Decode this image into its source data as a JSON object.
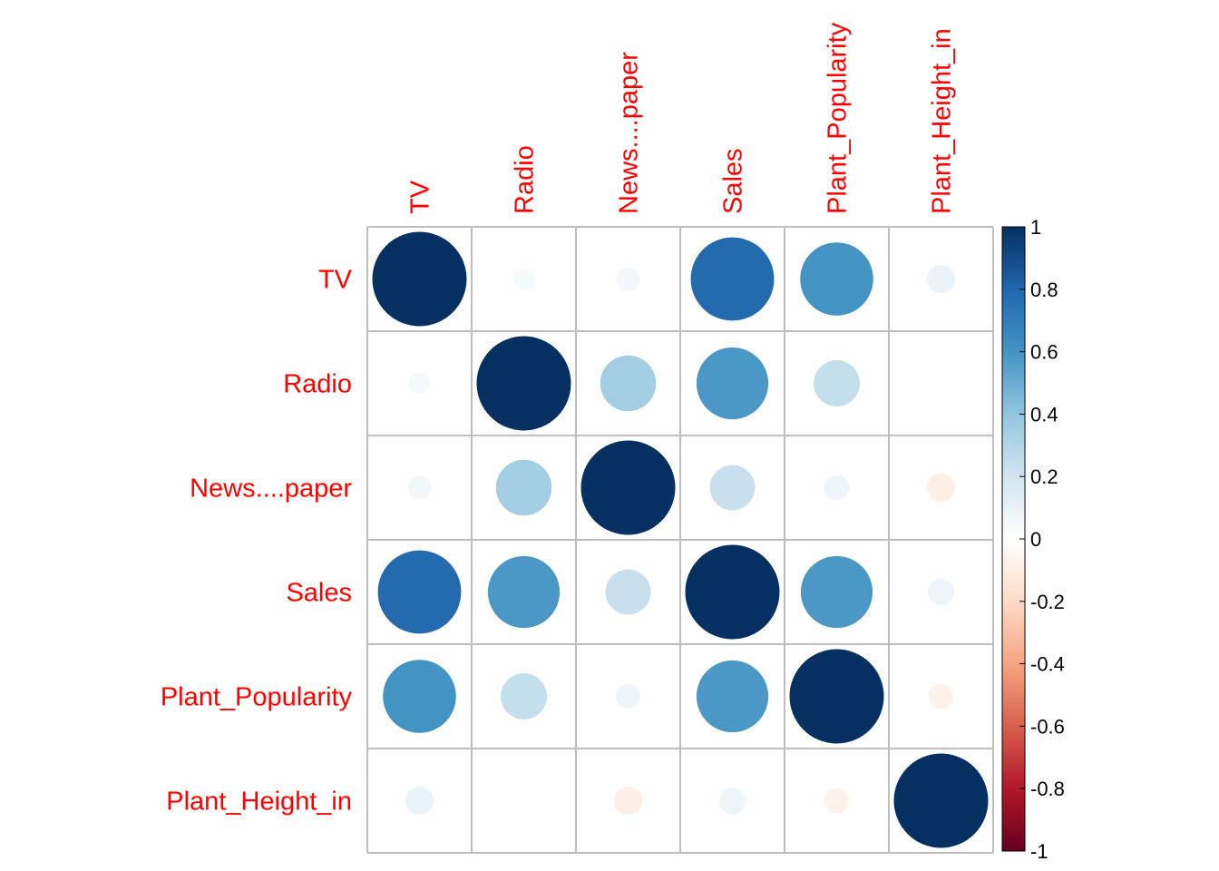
{
  "chart_data": {
    "type": "heatmap",
    "variables": [
      "TV",
      "Radio",
      "News....paper",
      "Sales",
      "Plant_Popularity",
      "Plant_Height_in"
    ],
    "matrix": [
      [
        1.0,
        0.05,
        0.06,
        0.78,
        0.6,
        0.09
      ],
      [
        0.05,
        1.0,
        0.35,
        0.58,
        0.24,
        0.0
      ],
      [
        0.06,
        0.35,
        1.0,
        0.23,
        0.07,
        -0.09
      ],
      [
        0.78,
        0.58,
        0.23,
        1.0,
        0.58,
        0.08
      ],
      [
        0.6,
        0.24,
        0.07,
        0.58,
        1.0,
        -0.07
      ],
      [
        0.09,
        0.0,
        -0.09,
        0.08,
        -0.07,
        1.0
      ]
    ],
    "colorbar": {
      "range": [
        -1,
        1
      ],
      "ticks": [
        "1",
        "0.8",
        "0.6",
        "0.4",
        "0.2",
        "0",
        "-0.2",
        "-0.4",
        "-0.6",
        "-0.8",
        "-1"
      ],
      "colors": [
        "#67001F",
        "#B2182B",
        "#D6604D",
        "#F4A582",
        "#FDDBC7",
        "#FFFFFF",
        "#D1E5F0",
        "#92C5DE",
        "#4393C3",
        "#2166AC",
        "#053061"
      ]
    },
    "grid_color": "#bebebe",
    "label_color": "#ff0000"
  }
}
